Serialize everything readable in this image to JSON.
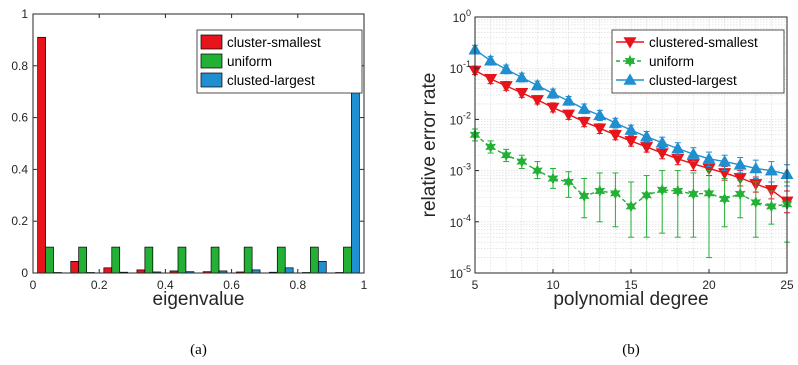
{
  "chart_data": [
    {
      "type": "bar",
      "panel_label": "(a)",
      "xlabel": "eigenvalue",
      "ylabel": "",
      "xlim": [
        0,
        1
      ],
      "ylim": [
        0,
        1
      ],
      "xticks": [
        "0",
        "0.2",
        "0.4",
        "0.6",
        "0.8",
        "1"
      ],
      "yticks": [
        "0",
        "0.2",
        "0.4",
        "0.6",
        "0.8",
        "1"
      ],
      "grid": false,
      "legend_position": "top-right",
      "bin_centers": [
        0.05,
        0.15,
        0.25,
        0.35,
        0.45,
        0.55,
        0.65,
        0.75,
        0.85,
        0.95
      ],
      "series": [
        {
          "name": "cluster-smallest",
          "color": "#e8141c",
          "values": [
            0.91,
            0.045,
            0.02,
            0.012,
            0.008,
            0.005,
            0.004,
            0.003,
            0.002,
            0.002
          ]
        },
        {
          "name": "uniform",
          "color": "#22b035",
          "values": [
            0.1,
            0.1,
            0.1,
            0.1,
            0.1,
            0.1,
            0.1,
            0.1,
            0.1,
            0.1
          ]
        },
        {
          "name": "clusted-largest",
          "color": "#1f8fd0",
          "values": [
            0.002,
            0.002,
            0.003,
            0.004,
            0.005,
            0.008,
            0.012,
            0.02,
            0.045,
            0.91
          ]
        }
      ]
    },
    {
      "type": "line",
      "panel_label": "(b)",
      "xlabel": "polynomial degree",
      "ylabel": "relative error rate",
      "xlim": [
        5,
        25
      ],
      "ylim": [
        1e-05,
        1
      ],
      "yscale": "log",
      "xticks": [
        "5",
        "10",
        "15",
        "20",
        "25"
      ],
      "yticks": [
        {
          "base": "10",
          "exp": "-5"
        },
        {
          "base": "10",
          "exp": "-4"
        },
        {
          "base": "10",
          "exp": "-3"
        },
        {
          "base": "10",
          "exp": "-2"
        },
        {
          "base": "10",
          "exp": "-1"
        },
        {
          "base": "10",
          "exp": "0"
        }
      ],
      "grid": true,
      "legend_position": "top-right",
      "x": [
        5,
        6,
        7,
        8,
        9,
        10,
        11,
        12,
        13,
        14,
        15,
        16,
        17,
        18,
        19,
        20,
        21,
        22,
        23,
        24,
        25
      ],
      "series": [
        {
          "name": "clustered-smallest",
          "color": "#e8141c",
          "marker": "triangle-down",
          "values": [
            0.09,
            0.062,
            0.045,
            0.033,
            0.024,
            0.017,
            0.0125,
            0.009,
            0.0067,
            0.005,
            0.0038,
            0.0029,
            0.0022,
            0.0017,
            0.00135,
            0.0011,
            0.0009,
            0.00072,
            0.00055,
            0.00042,
            0.00025
          ],
          "error_low": [
            0.075,
            0.05,
            0.037,
            0.027,
            0.02,
            0.014,
            0.01,
            0.0072,
            0.0053,
            0.004,
            0.003,
            0.0023,
            0.0017,
            0.0013,
            0.001,
            0.0008,
            0.00065,
            0.0005,
            0.00038,
            0.00028,
            0.00015
          ],
          "error_high": [
            0.11,
            0.075,
            0.055,
            0.04,
            0.029,
            0.021,
            0.015,
            0.011,
            0.0082,
            0.0062,
            0.0047,
            0.0036,
            0.0028,
            0.0022,
            0.0018,
            0.0015,
            0.0012,
            0.001,
            0.00075,
            0.0006,
            0.0004
          ]
        },
        {
          "name": "uniform",
          "color": "#22b035",
          "marker": "hexagram",
          "values": [
            0.005,
            0.0029,
            0.002,
            0.0015,
            0.001,
            0.0007,
            0.0006,
            0.00032,
            0.0004,
            0.00036,
            0.0002,
            0.00033,
            0.00042,
            0.0004,
            0.00035,
            0.00036,
            0.00028,
            0.00035,
            0.00024,
            0.0002,
            0.00022
          ],
          "error_low": [
            0.0038,
            0.0022,
            0.0015,
            0.0011,
            0.0007,
            0.00045,
            0.0003,
            0.00012,
            0.0001,
            8e-05,
            5e-05,
            5e-05,
            6e-05,
            5e-05,
            5e-05,
            2e-05,
            8e-05,
            0.00012,
            5e-05,
            9e-05,
            4e-05
          ],
          "error_high": [
            0.0065,
            0.0038,
            0.0026,
            0.002,
            0.0015,
            0.0011,
            0.00095,
            0.0007,
            0.0009,
            0.0009,
            0.0006,
            0.0008,
            0.001,
            0.001,
            0.0009,
            0.001,
            0.0007,
            0.00065,
            0.0006,
            0.0004,
            0.0006
          ]
        },
        {
          "name": "clusted-largest",
          "color": "#1f8fd0",
          "marker": "triangle-up",
          "values": [
            0.23,
            0.14,
            0.095,
            0.066,
            0.046,
            0.032,
            0.023,
            0.016,
            0.012,
            0.0085,
            0.0062,
            0.0046,
            0.0035,
            0.0027,
            0.0021,
            0.0017,
            0.0015,
            0.0013,
            0.0011,
            0.001,
            0.00085
          ],
          "error_low": [
            0.19,
            0.115,
            0.078,
            0.054,
            0.038,
            0.026,
            0.019,
            0.013,
            0.0095,
            0.0068,
            0.0049,
            0.0036,
            0.0027,
            0.002,
            0.0015,
            0.0012,
            0.001,
            0.0009,
            0.0007,
            0.0006,
            0.0005
          ],
          "error_high": [
            0.28,
            0.17,
            0.115,
            0.08,
            0.056,
            0.039,
            0.028,
            0.02,
            0.015,
            0.0105,
            0.0077,
            0.0058,
            0.0045,
            0.0035,
            0.0028,
            0.0023,
            0.002,
            0.0018,
            0.0016,
            0.0015,
            0.0013
          ]
        }
      ]
    }
  ]
}
